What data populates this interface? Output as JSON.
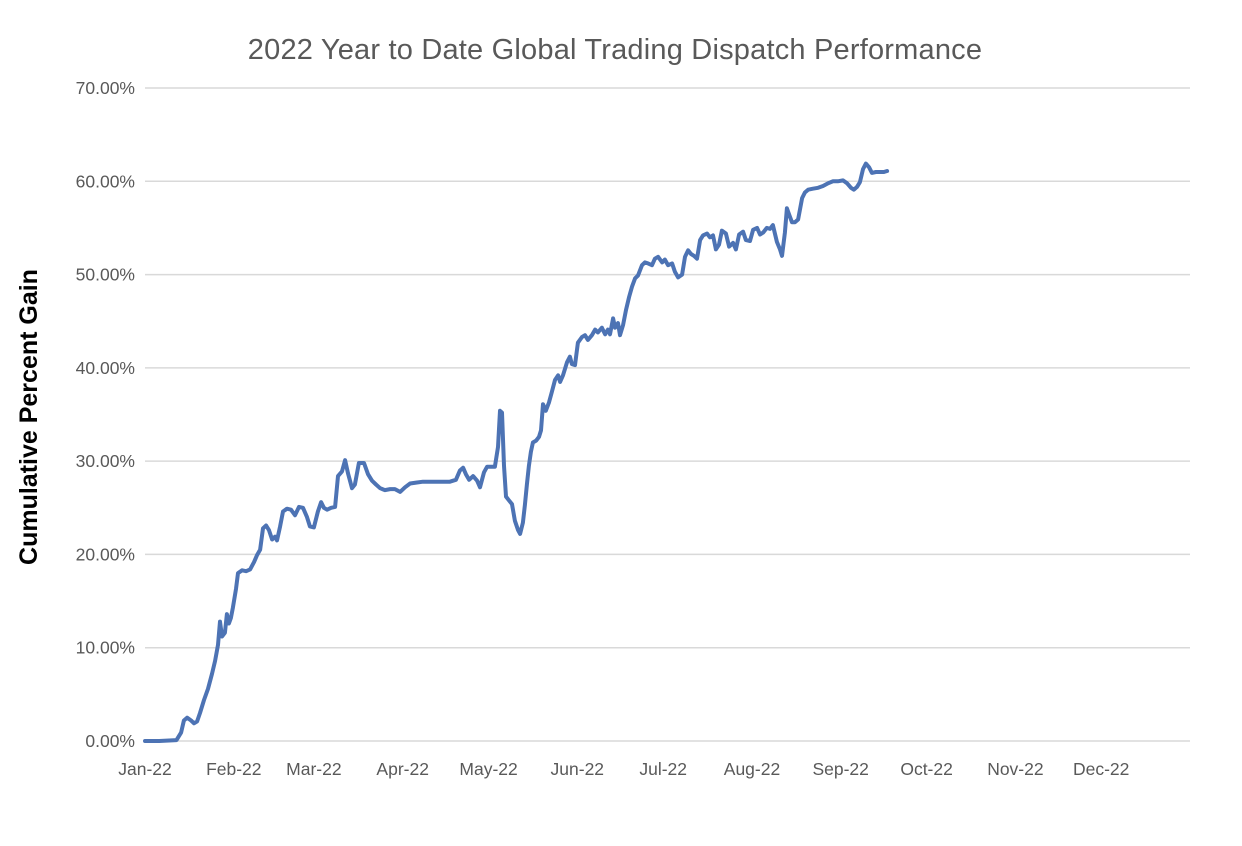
{
  "page": {
    "background": "#ffffff"
  },
  "chart_data": {
    "type": "line",
    "title": "2022 Year to Date Global Trading Dispatch Performance",
    "ylabel": "Cumulative Percent Gain",
    "xlabel": "",
    "legend": "none",
    "grid": "horizontal",
    "ylim_percent": [
      0,
      70
    ],
    "y_ticks_percent": [
      0,
      10,
      20,
      30,
      40,
      50,
      60,
      70
    ],
    "y_tick_labels": [
      "0.00%",
      "10.00%",
      "20.00%",
      "30.00%",
      "40.00%",
      "50.00%",
      "60.00%",
      "70.00%"
    ],
    "x_axis": {
      "unit": "day-of-year-2022",
      "range_days": [
        0,
        365
      ],
      "tick_days": [
        0,
        31,
        59,
        90,
        120,
        151,
        181,
        212,
        243,
        273,
        304,
        334
      ],
      "tick_labels": [
        "Jan-22",
        "Feb-22",
        "Mar-22",
        "Apr-22",
        "May-22",
        "Jun-22",
        "Jul-22",
        "Aug-22",
        "Sep-22",
        "Oct-22",
        "Nov-22",
        "Dec-22"
      ]
    },
    "colors": {
      "line": "#4d73b4",
      "gridline": "#d9d9d9",
      "title_text": "#595959",
      "axis_text": "#595959",
      "y_title_text": "#000000",
      "background": "#ffffff"
    },
    "series": [
      {
        "name": "cumulative-percent-gain",
        "color": "#4d73b4",
        "stroke_width": 4,
        "points_day_pct": [
          [
            0,
            0.0
          ],
          [
            5,
            0.0
          ],
          [
            11,
            0.1
          ],
          [
            12.6,
            0.9
          ],
          [
            13.6,
            2.2
          ],
          [
            14.7,
            2.5
          ],
          [
            16.1,
            2.2
          ],
          [
            17.1,
            1.9
          ],
          [
            18.2,
            2.1
          ],
          [
            19.2,
            3.0
          ],
          [
            20.6,
            4.4
          ],
          [
            22,
            5.6
          ],
          [
            23.4,
            7.2
          ],
          [
            24.5,
            8.6
          ],
          [
            25.5,
            10.3
          ],
          [
            26.2,
            12.8
          ],
          [
            26.9,
            11.2
          ],
          [
            27.9,
            11.6
          ],
          [
            28.6,
            13.6
          ],
          [
            29.3,
            12.6
          ],
          [
            30,
            13.2
          ],
          [
            30.7,
            14.3
          ],
          [
            31.8,
            16.3
          ],
          [
            32.5,
            18.0
          ],
          [
            33.9,
            18.3
          ],
          [
            35.3,
            18.2
          ],
          [
            36.7,
            18.4
          ],
          [
            38.1,
            19.2
          ],
          [
            39.1,
            19.9
          ],
          [
            40.2,
            20.5
          ],
          [
            41.2,
            22.8
          ],
          [
            42.3,
            23.1
          ],
          [
            43.3,
            22.6
          ],
          [
            44.4,
            21.6
          ],
          [
            45.4,
            21.9
          ],
          [
            46.1,
            21.5
          ],
          [
            47.2,
            23.0
          ],
          [
            48.2,
            24.6
          ],
          [
            49.6,
            24.9
          ],
          [
            51,
            24.8
          ],
          [
            52.4,
            24.2
          ],
          [
            53.8,
            25.1
          ],
          [
            55.2,
            25.0
          ],
          [
            56.6,
            24.0
          ],
          [
            57.6,
            23.0
          ],
          [
            59,
            22.9
          ],
          [
            60.4,
            24.6
          ],
          [
            61.5,
            25.6
          ],
          [
            62.5,
            25.0
          ],
          [
            63.6,
            24.8
          ],
          [
            65,
            25.0
          ],
          [
            66.4,
            25.1
          ],
          [
            67.4,
            28.4
          ],
          [
            68.8,
            28.9
          ],
          [
            69.9,
            30.1
          ],
          [
            70.9,
            28.7
          ],
          [
            72.3,
            27.1
          ],
          [
            73.3,
            27.5
          ],
          [
            74.7,
            29.8
          ],
          [
            76.5,
            29.8
          ],
          [
            77.9,
            28.6
          ],
          [
            79.3,
            27.9
          ],
          [
            80.7,
            27.5
          ],
          [
            82.1,
            27.1
          ],
          [
            83.8,
            26.9
          ],
          [
            85.6,
            27.0
          ],
          [
            87.3,
            27.0
          ],
          [
            89.1,
            26.7
          ],
          [
            90.8,
            27.2
          ],
          [
            92.6,
            27.6
          ],
          [
            94.7,
            27.7
          ],
          [
            97.1,
            27.8
          ],
          [
            99.5,
            27.8
          ],
          [
            102,
            27.8
          ],
          [
            104.4,
            27.8
          ],
          [
            106.5,
            27.8
          ],
          [
            108.6,
            28.0
          ],
          [
            110,
            29.0
          ],
          [
            111.1,
            29.3
          ],
          [
            112.1,
            28.6
          ],
          [
            113.2,
            28.0
          ],
          [
            114.6,
            28.4
          ],
          [
            116,
            27.9
          ],
          [
            117,
            27.2
          ],
          [
            118.4,
            28.8
          ],
          [
            119.5,
            29.4
          ],
          [
            120.9,
            29.4
          ],
          [
            122.2,
            29.4
          ],
          [
            123.3,
            31.5
          ],
          [
            124,
            35.4
          ],
          [
            124.7,
            35.2
          ],
          [
            125.4,
            29.5
          ],
          [
            126.1,
            26.2
          ],
          [
            127.1,
            25.8
          ],
          [
            128.2,
            25.4
          ],
          [
            129.2,
            23.6
          ],
          [
            130.3,
            22.6
          ],
          [
            131,
            22.2
          ],
          [
            132,
            23.4
          ],
          [
            132.7,
            25.3
          ],
          [
            133.4,
            27.5
          ],
          [
            134.1,
            29.5
          ],
          [
            134.8,
            31.0
          ],
          [
            135.5,
            32.0
          ],
          [
            136.6,
            32.2
          ],
          [
            137.6,
            32.6
          ],
          [
            138.3,
            33.3
          ],
          [
            139,
            36.1
          ],
          [
            140,
            35.4
          ],
          [
            141.1,
            36.3
          ],
          [
            142.1,
            37.4
          ],
          [
            143.2,
            38.7
          ],
          [
            144.3,
            39.2
          ],
          [
            145,
            38.5
          ],
          [
            146,
            39.2
          ],
          [
            147.4,
            40.6
          ],
          [
            148.4,
            41.2
          ],
          [
            149.1,
            40.4
          ],
          [
            150.2,
            40.3
          ],
          [
            151.2,
            42.7
          ],
          [
            152.6,
            43.3
          ],
          [
            153.7,
            43.5
          ],
          [
            154.7,
            43.0
          ],
          [
            156.1,
            43.5
          ],
          [
            157.2,
            44.1
          ],
          [
            158.2,
            43.8
          ],
          [
            159.6,
            44.3
          ],
          [
            160.7,
            43.6
          ],
          [
            161.7,
            44.1
          ],
          [
            162.4,
            43.6
          ],
          [
            163.5,
            45.3
          ],
          [
            164.2,
            44.3
          ],
          [
            165.2,
            44.8
          ],
          [
            165.9,
            43.5
          ],
          [
            167,
            44.6
          ],
          [
            168,
            46.2
          ],
          [
            169.1,
            47.6
          ],
          [
            170.1,
            48.7
          ],
          [
            171.2,
            49.6
          ],
          [
            172.2,
            49.9
          ],
          [
            173.6,
            51.0
          ],
          [
            174.6,
            51.3
          ],
          [
            175.7,
            51.2
          ],
          [
            177.1,
            51.0
          ],
          [
            178.1,
            51.7
          ],
          [
            179.2,
            51.9
          ],
          [
            180.6,
            51.3
          ],
          [
            181.6,
            51.6
          ],
          [
            182.7,
            51.0
          ],
          [
            184.1,
            51.2
          ],
          [
            185.1,
            50.3
          ],
          [
            186.2,
            49.7
          ],
          [
            187.6,
            50.0
          ],
          [
            188.6,
            51.9
          ],
          [
            189.7,
            52.6
          ],
          [
            190.7,
            52.2
          ],
          [
            191.8,
            52.0
          ],
          [
            192.8,
            51.7
          ],
          [
            193.9,
            53.7
          ],
          [
            194.9,
            54.2
          ],
          [
            196.3,
            54.4
          ],
          [
            197.3,
            54.0
          ],
          [
            198.4,
            54.2
          ],
          [
            199.4,
            52.7
          ],
          [
            200.5,
            53.2
          ],
          [
            201.5,
            54.7
          ],
          [
            202.9,
            54.4
          ],
          [
            204,
            53.0
          ],
          [
            205.4,
            53.4
          ],
          [
            206.4,
            52.7
          ],
          [
            207.5,
            54.3
          ],
          [
            208.9,
            54.6
          ],
          [
            209.9,
            53.7
          ],
          [
            211.3,
            53.6
          ],
          [
            212.4,
            54.8
          ],
          [
            213.8,
            55.0
          ],
          [
            214.8,
            54.3
          ],
          [
            215.9,
            54.5
          ],
          [
            217.2,
            55.0
          ],
          [
            218.3,
            54.9
          ],
          [
            219.3,
            55.3
          ],
          [
            220.7,
            53.5
          ],
          [
            221.8,
            52.7
          ],
          [
            222.5,
            52.0
          ],
          [
            223.5,
            54.5
          ],
          [
            224.2,
            57.1
          ],
          [
            224.9,
            56.5
          ],
          [
            226,
            55.6
          ],
          [
            227,
            55.6
          ],
          [
            228.1,
            55.9
          ],
          [
            229.5,
            58.2
          ],
          [
            230.5,
            58.8
          ],
          [
            231.6,
            59.1
          ],
          [
            233.3,
            59.2
          ],
          [
            235.1,
            59.3
          ],
          [
            236.8,
            59.5
          ],
          [
            238.6,
            59.8
          ],
          [
            240.3,
            60.0
          ],
          [
            242,
            60.0
          ],
          [
            243.8,
            60.1
          ],
          [
            245.2,
            59.8
          ],
          [
            246.6,
            59.3
          ],
          [
            247.6,
            59.1
          ],
          [
            248.7,
            59.4
          ],
          [
            249.7,
            59.9
          ],
          [
            250.8,
            61.3
          ],
          [
            251.8,
            61.9
          ],
          [
            252.9,
            61.5
          ],
          [
            253.9,
            60.9
          ],
          [
            255.3,
            61.0
          ],
          [
            256.7,
            61.0
          ],
          [
            258.1,
            61.0
          ],
          [
            259.2,
            61.1
          ]
        ]
      }
    ]
  }
}
